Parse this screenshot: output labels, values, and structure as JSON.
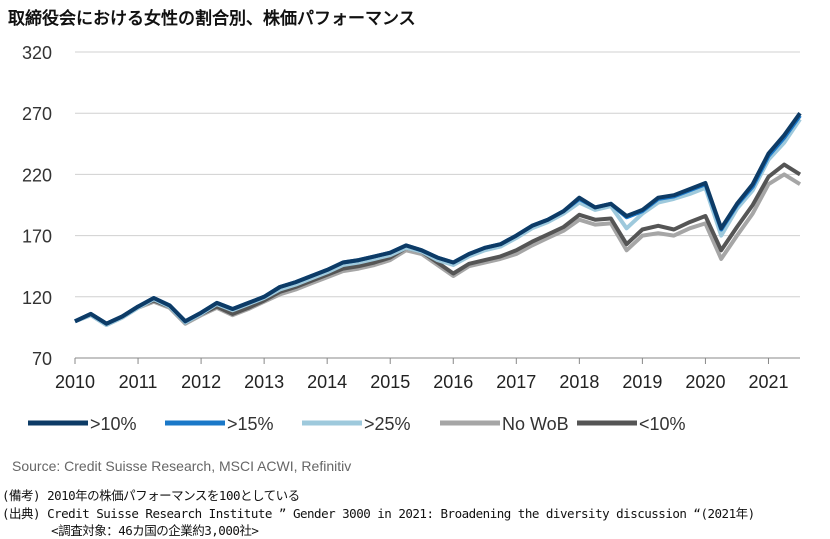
{
  "title": "取締役会における女性の割合別、株価パフォーマンス",
  "source": "Source: Credit Suisse Research, MSCI ACWI, Refinitiv",
  "notes": [
    "(備考) 2010年の株価パフォーマンスを100としている",
    "(出典) Credit Suisse Research Institute ” Gender 3000 in 2021: Broadening the diversity discussion “(2021年)",
    "       <調査対象：46カ国の企業約3,000社>"
  ],
  "chart_data": {
    "type": "line",
    "title": "取締役会における女性の割合別、株価パフォーマンス",
    "xlabel": "",
    "ylabel": "",
    "ylim": [
      70,
      320
    ],
    "yticks": [
      70,
      120,
      170,
      220,
      270,
      320
    ],
    "xlim": [
      2010,
      2021.5
    ],
    "xticks": [
      2010,
      2011,
      2012,
      2013,
      2014,
      2015,
      2016,
      2017,
      2018,
      2019,
      2020,
      2021
    ],
    "grid": true,
    "legend": "bottom",
    "x": [
      2010,
      2010.25,
      2010.5,
      2010.75,
      2011,
      2011.25,
      2011.5,
      2011.75,
      2012,
      2012.25,
      2012.5,
      2012.75,
      2013,
      2013.25,
      2013.5,
      2013.75,
      2014,
      2014.25,
      2014.5,
      2014.75,
      2015,
      2015.25,
      2015.5,
      2015.75,
      2016,
      2016.25,
      2016.5,
      2016.75,
      2017,
      2017.25,
      2017.5,
      2017.75,
      2018,
      2018.25,
      2018.5,
      2018.75,
      2019,
      2019.25,
      2019.5,
      2019.75,
      2020,
      2020.25,
      2020.5,
      2020.75,
      2021,
      2021.25,
      2021.5
    ],
    "series": [
      {
        "name": ">10%",
        "color": "#0d3b66",
        "values": [
          100,
          106,
          98,
          104,
          112,
          119,
          113,
          100,
          107,
          115,
          110,
          115,
          120,
          128,
          132,
          137,
          142,
          148,
          150,
          153,
          156,
          162,
          158,
          152,
          148,
          155,
          160,
          163,
          170,
          178,
          183,
          190,
          201,
          193,
          196,
          186,
          191,
          201,
          203,
          208,
          213,
          176,
          196,
          212,
          237,
          252,
          270
        ]
      },
      {
        "name": ">15%",
        "color": "#1a78c8",
        "values": [
          100,
          106,
          98,
          104,
          112,
          119,
          113,
          100,
          107,
          115,
          110,
          115,
          120,
          128,
          132,
          137,
          142,
          148,
          150,
          153,
          156,
          162,
          158,
          152,
          148,
          155,
          160,
          163,
          170,
          178,
          183,
          190,
          200,
          193,
          196,
          185,
          190,
          200,
          202,
          207,
          212,
          175,
          195,
          210,
          235,
          250,
          268
        ]
      },
      {
        "name": ">25%",
        "color": "#9ec9dc",
        "values": [
          100,
          105,
          97,
          103,
          111,
          118,
          112,
          99,
          106,
          114,
          109,
          114,
          119,
          126,
          130,
          135,
          140,
          146,
          148,
          151,
          154,
          160,
          157,
          150,
          146,
          153,
          158,
          161,
          168,
          176,
          181,
          188,
          197,
          191,
          194,
          176,
          188,
          197,
          200,
          204,
          209,
          170,
          192,
          207,
          232,
          246,
          265
        ]
      },
      {
        "name": "No WoB",
        "color": "#a6a6a6",
        "values": [
          100,
          105,
          97,
          103,
          111,
          116,
          111,
          98,
          105,
          111,
          105,
          110,
          116,
          122,
          126,
          131,
          136,
          141,
          143,
          146,
          150,
          158,
          155,
          146,
          137,
          145,
          148,
          151,
          155,
          162,
          168,
          174,
          183,
          179,
          180,
          158,
          170,
          172,
          170,
          176,
          180,
          151,
          170,
          188,
          212,
          220,
          212
        ]
      },
      {
        "name": "<10%",
        "color": "#555555",
        "values": [
          100,
          106,
          98,
          104,
          112,
          117,
          112,
          99,
          106,
          112,
          106,
          111,
          117,
          124,
          128,
          133,
          138,
          143,
          145,
          148,
          152,
          160,
          157,
          148,
          139,
          147,
          150,
          153,
          158,
          165,
          171,
          177,
          187,
          183,
          184,
          163,
          175,
          178,
          175,
          181,
          186,
          158,
          177,
          195,
          218,
          228,
          220
        ]
      }
    ]
  }
}
